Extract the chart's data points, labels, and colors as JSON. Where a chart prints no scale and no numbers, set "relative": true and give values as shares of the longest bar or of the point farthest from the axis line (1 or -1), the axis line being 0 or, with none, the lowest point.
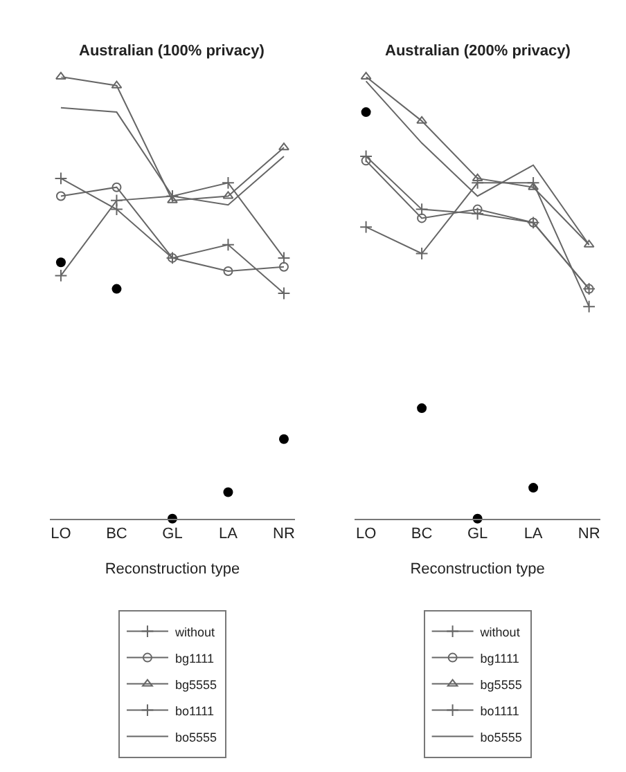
{
  "chart_data": [
    {
      "type": "line",
      "title": "Australian (100% privacy)",
      "xlabel": "Reconstruction type",
      "relative": true,
      "categories": [
        "LO",
        "BC",
        "GL",
        "LA",
        "NR"
      ],
      "legend": "bottom",
      "series": [
        {
          "name": "without",
          "color": "#666666",
          "marker": "cross",
          "values": [
            0.55,
            0.72,
            0.73,
            0.76,
            0.59
          ]
        },
        {
          "name": "bg1111",
          "color": "#666666",
          "marker": "circle",
          "values": [
            0.73,
            0.75,
            0.59,
            0.56,
            0.57
          ]
        },
        {
          "name": "bg5555",
          "color": "#666666",
          "marker": "triangle",
          "values": [
            1.0,
            0.98,
            0.72,
            0.73,
            0.84
          ]
        },
        {
          "name": "bo1111",
          "color": "#666666",
          "marker": "cross",
          "values": [
            0.77,
            0.7,
            0.59,
            0.62,
            0.51
          ]
        },
        {
          "name": "bo5555",
          "color": "#666666",
          "marker": "none",
          "values": [
            0.93,
            0.92,
            0.73,
            0.71,
            0.82
          ]
        },
        {
          "type": "scatter",
          "color": "#000000",
          "marker": "circle",
          "values": [
            0.58,
            0.52,
            0.0,
            0.06,
            0.18
          ]
        }
      ]
    },
    {
      "type": "line",
      "title": "Australian (200% privacy)",
      "xlabel": "Reconstruction type",
      "relative": true,
      "categories": [
        "LO",
        "BC",
        "GL",
        "LA",
        "NR"
      ],
      "legend": "bottom",
      "series": [
        {
          "name": "without",
          "color": "#666666",
          "marker": "cross",
          "values": [
            0.66,
            0.6,
            0.76,
            0.76,
            0.48
          ]
        },
        {
          "name": "bg1111",
          "color": "#666666",
          "marker": "circle",
          "values": [
            0.81,
            0.68,
            0.7,
            0.67,
            0.52
          ]
        },
        {
          "name": "bg5555",
          "color": "#666666",
          "marker": "triangle",
          "values": [
            1.0,
            0.9,
            0.77,
            0.75,
            0.62
          ]
        },
        {
          "name": "bo1111",
          "color": "#666666",
          "marker": "cross",
          "values": [
            0.82,
            0.7,
            0.69,
            0.67,
            0.52
          ]
        },
        {
          "name": "bo5555",
          "color": "#666666",
          "marker": "none",
          "values": [
            0.99,
            0.85,
            0.73,
            0.8,
            0.62
          ]
        },
        {
          "type": "scatter",
          "color": "#000000",
          "marker": "circle",
          "values": [
            0.92,
            0.25,
            0.0,
            0.07,
            null
          ]
        }
      ]
    }
  ]
}
